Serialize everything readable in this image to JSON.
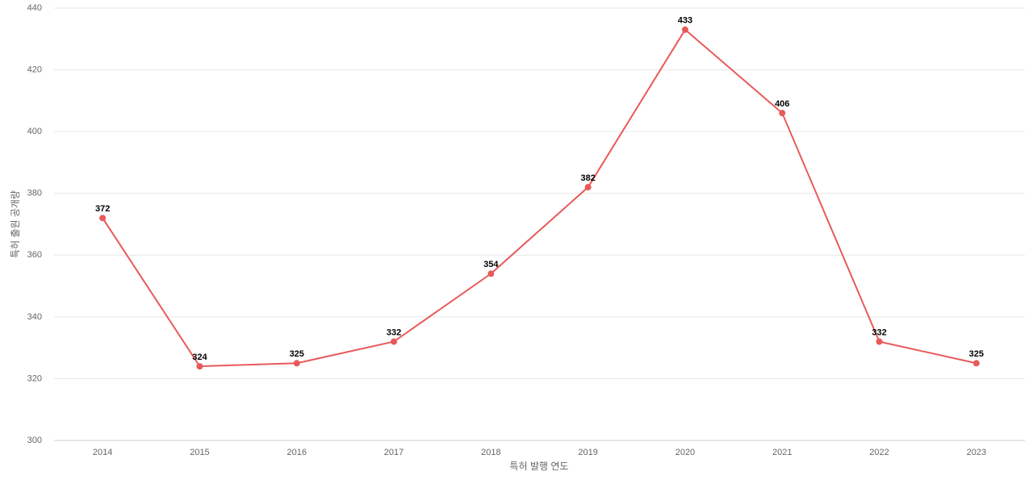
{
  "chart_data": {
    "type": "line",
    "x_label": "특허 발행 연도",
    "y_label": "특허 출원 공개량",
    "categories": [
      "2014",
      "2015",
      "2016",
      "2017",
      "2018",
      "2019",
      "2020",
      "2021",
      "2022",
      "2023"
    ],
    "series": [
      {
        "name": "특허 출원 공개량",
        "color": "#e85a5a",
        "values": [
          372,
          324,
          325,
          332,
          354,
          382,
          433,
          406,
          332,
          325
        ]
      }
    ],
    "ylim": [
      300,
      440
    ],
    "yticks": [
      300,
      320,
      340,
      360,
      380,
      400,
      420,
      440
    ],
    "grid": true
  }
}
